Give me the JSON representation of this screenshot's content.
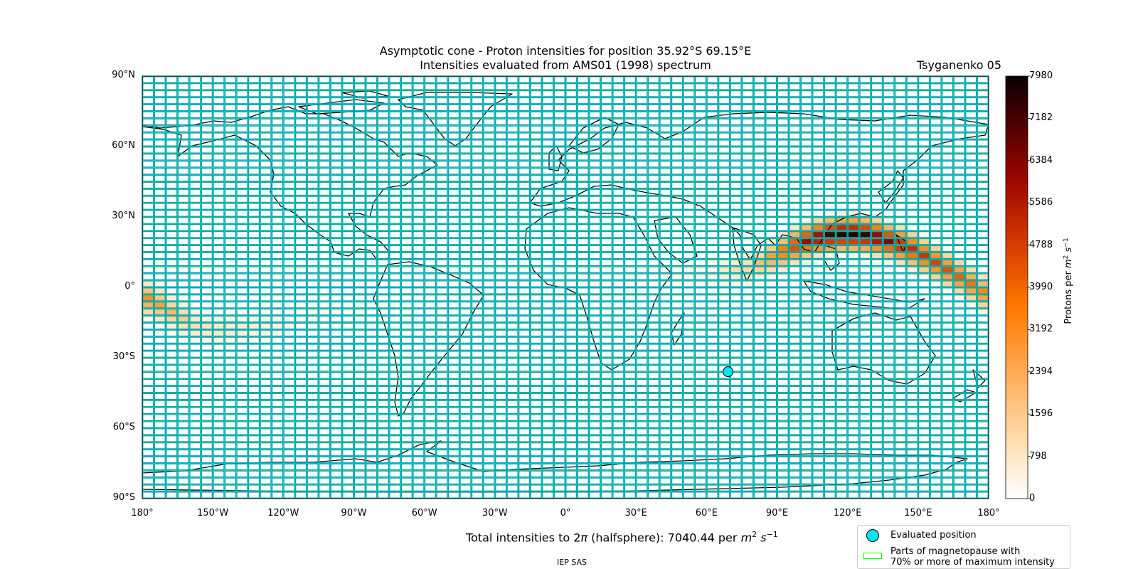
{
  "title": {
    "line1": "Asymptotic cone - Proton intensities for position 35.92°S 69.15°E",
    "line2": "Intensities evaluated from AMS01 (1998) spectrum",
    "model": "Tsyganenko 05"
  },
  "map": {
    "projection": "PlateCarree",
    "lat_labels": [
      "90°N",
      "60°N",
      "30°N",
      "0°",
      "30°S",
      "60°S",
      "90°S"
    ],
    "lon_labels": [
      "180°",
      "150°W",
      "120°W",
      "90°W",
      "60°W",
      "30°W",
      "0°",
      "30°E",
      "60°E",
      "90°E",
      "120°E",
      "150°E",
      "180°"
    ],
    "grid_color": "#00aaaa",
    "coast_color": "#000000",
    "evaluated_position": {
      "lat": -35.92,
      "lon": 69.15,
      "color": "#00e5ee"
    }
  },
  "chart_data": {
    "type": "heatmap",
    "title": "Asymptotic cone - Proton intensities for position 35.92°S 69.15°E",
    "xlabel": "",
    "ylabel": "",
    "xlim": [
      -180,
      180
    ],
    "ylim": [
      -90,
      90
    ],
    "cell_size_deg": {
      "lon": 5,
      "lat": 3
    },
    "colorscale": "gist_heat_r",
    "vmin": 0,
    "vmax": 7980,
    "colorbar_label": "Protons per m² s⁻¹",
    "colorbar_ticks": [
      0,
      798,
      1596,
      2394,
      3192,
      3990,
      4788,
      5586,
      6384,
      7182,
      7980
    ],
    "band_path": [
      [
        -180,
        -4,
        3500
      ],
      [
        -175,
        -6,
        3000
      ],
      [
        -170,
        -9,
        2400
      ],
      [
        -165,
        -12,
        1800
      ],
      [
        -160,
        -15,
        1300
      ],
      [
        -155,
        -17,
        900
      ],
      [
        -150,
        -18,
        900
      ],
      [
        -145,
        -18,
        800
      ],
      [
        -140,
        -18,
        700
      ],
      [
        -135,
        -18,
        600
      ],
      [
        -130,
        -17,
        500
      ],
      [
        -125,
        -16,
        400
      ],
      [
        -120,
        -15,
        300
      ],
      [
        -110,
        -13,
        200
      ],
      [
        -100,
        -11,
        150
      ],
      [
        -90,
        -8,
        100
      ],
      [
        -60,
        -4,
        60
      ],
      [
        -30,
        -1,
        60
      ],
      [
        0,
        1,
        80
      ],
      [
        30,
        3,
        120
      ],
      [
        60,
        5,
        300
      ],
      [
        80,
        9,
        1500
      ],
      [
        90,
        14,
        3500
      ],
      [
        100,
        19,
        5800
      ],
      [
        110,
        22,
        7200
      ],
      [
        120,
        23,
        7980
      ],
      [
        130,
        22,
        7500
      ],
      [
        140,
        19,
        6200
      ],
      [
        150,
        15,
        5200
      ],
      [
        160,
        9,
        4500
      ],
      [
        170,
        3,
        4000
      ],
      [
        180,
        -4,
        3500
      ]
    ],
    "total_intensity_value": 7040.44,
    "threshold_fraction": 0.7
  },
  "total_text": {
    "prefix": "Total intensities to 2",
    "pi": "π",
    "mid": " (halfsphere): 7040.44 per ",
    "m": "m",
    "two": "2",
    "s": " s",
    "minus1": "−1"
  },
  "colorbar_axis_label": {
    "pre": "Protons per ",
    "m": "m",
    "two": "2",
    "s": " s",
    "minus1": "−1"
  },
  "legend": {
    "evaluated": "Evaluated position",
    "magnetopause_line1": "Parts of magnetopause with",
    "magnetopause_line2": "70% or more of maximum intensity"
  },
  "credit": "IEP SAS"
}
